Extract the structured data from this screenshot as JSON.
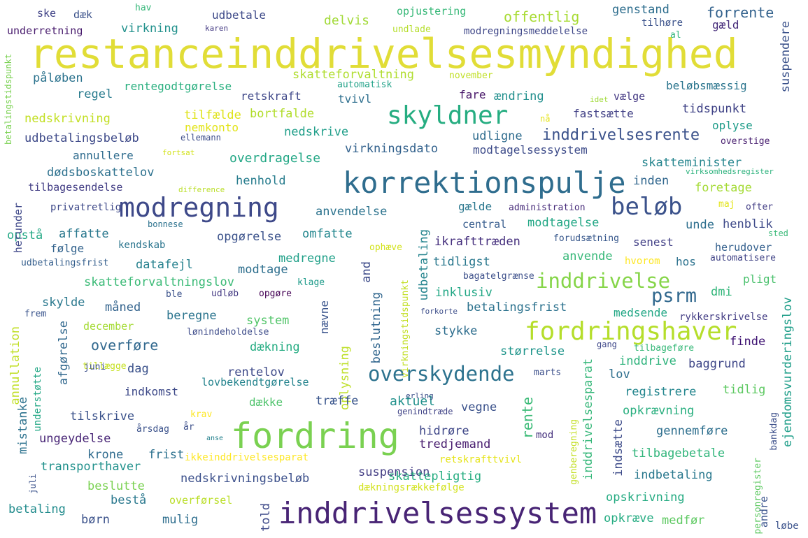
{
  "colors": {
    "background": "#ffffff",
    "palette": [
      "#440154",
      "#414487",
      "#2a788e",
      "#22a884",
      "#7ad151",
      "#fde725"
    ]
  },
  "words": [
    {
      "text": "restanceinddrivelsesmyndighed",
      "color": "#e1dd37"
    },
    {
      "text": "korrektionspulje",
      "color": "#2f6d8e"
    },
    {
      "text": "fordring",
      "color": "#7ad151"
    },
    {
      "text": "inddrivelsessystem",
      "color": "#482475"
    },
    {
      "text": "modregning",
      "color": "#3e4989"
    },
    {
      "text": "fordringshaver",
      "color": "#b5de2b"
    },
    {
      "text": "skyldner",
      "color": "#26ad81"
    },
    {
      "text": "beløb",
      "color": "#3b528b"
    },
    {
      "text": "overskydende",
      "color": "#2c728e"
    },
    {
      "text": "inddrivelse",
      "color": "#86d549"
    },
    {
      "text": "psrm",
      "color": "#31688e"
    },
    {
      "text": "inddrivelsesrente",
      "color": "#3b528b"
    },
    {
      "text": "ejendomsvurderingslov",
      "color": "#1f9e89"
    },
    {
      "text": "ske",
      "color": "#404387"
    },
    {
      "text": "dæk",
      "color": "#3b528b"
    },
    {
      "text": "hav",
      "color": "#35b779"
    },
    {
      "text": "underretning",
      "color": "#481b6d"
    },
    {
      "text": "udbetale",
      "color": "#3e4a89"
    },
    {
      "text": "karen",
      "color": "#443a83"
    },
    {
      "text": "delvis",
      "color": "#a2da37"
    },
    {
      "text": "opjustering",
      "color": "#37b878"
    },
    {
      "text": "undlade",
      "color": "#b5de2b"
    },
    {
      "text": "offentlig",
      "color": "#a8db34"
    },
    {
      "text": "genstand",
      "color": "#2e6e8e"
    },
    {
      "text": "forrente",
      "color": "#33628d"
    },
    {
      "text": "gæld",
      "color": "#472d7b"
    },
    {
      "text": "tilhøre",
      "color": "#3b528b"
    },
    {
      "text": "al",
      "color": "#31b57b"
    },
    {
      "text": "virkning",
      "color": "#21918c"
    },
    {
      "text": "modregningsmeddelelse",
      "color": "#3f4788"
    },
    {
      "text": "påløben",
      "color": "#2c738e"
    },
    {
      "text": "skatteforvaltning",
      "color": "#b0dd2f"
    },
    {
      "text": "november",
      "color": "#c0df25"
    },
    {
      "text": "automatisk",
      "color": "#1fa187"
    },
    {
      "text": "regel",
      "color": "#297b8e"
    },
    {
      "text": "rentegodtgørelse",
      "color": "#29af7f"
    },
    {
      "text": "retskraft",
      "color": "#3f4889"
    },
    {
      "text": "tvivl",
      "color": "#2e6f8e"
    },
    {
      "text": "fare",
      "color": "#481769"
    },
    {
      "text": "ændring",
      "color": "#218f8d"
    },
    {
      "text": "idet",
      "color": "#a0da39"
    },
    {
      "text": "vælge",
      "color": "#443983"
    },
    {
      "text": "beløbsmæssig",
      "color": "#2b758e"
    },
    {
      "text": "suspendere",
      "color": "#3b528b"
    },
    {
      "text": "nedskrivning",
      "color": "#c2df23"
    },
    {
      "text": "tilfælde",
      "color": "#dfe318"
    },
    {
      "text": "bortfalde",
      "color": "#b2dd2d"
    },
    {
      "text": "nemkonto",
      "color": "#e2e418"
    },
    {
      "text": "nedskrive",
      "color": "#1f9e89"
    },
    {
      "text": "nå",
      "color": "#e5e419"
    },
    {
      "text": "fastsætte",
      "color": "#424186"
    },
    {
      "text": "tidspunkt",
      "color": "#414487"
    },
    {
      "text": "oplyse",
      "color": "#1e9c89"
    },
    {
      "text": "overstige",
      "color": "#481f70"
    },
    {
      "text": "udbetalingsbeløb",
      "color": "#3e4a89"
    },
    {
      "text": "ellemann",
      "color": "#3d4d8a"
    },
    {
      "text": "fortsat",
      "color": "#d2e21b"
    },
    {
      "text": "udligne",
      "color": "#2f6c8e"
    },
    {
      "text": "virkningsdato",
      "color": "#33628d"
    },
    {
      "text": "modtagelsessystem",
      "color": "#3e4c8a"
    },
    {
      "text": "annullere",
      "color": "#2f6c8e"
    },
    {
      "text": "overdragelse",
      "color": "#22a785"
    },
    {
      "text": "skatteminister",
      "color": "#25858e"
    },
    {
      "text": "dødsboskattelov",
      "color": "#2d718e"
    },
    {
      "text": "henhold",
      "color": "#287d8e"
    },
    {
      "text": "inden",
      "color": "#31678e"
    },
    {
      "text": "virksomhedsregister",
      "color": "#2db27d"
    },
    {
      "text": "tilbagesendelse",
      "color": "#433e85"
    },
    {
      "text": "difference",
      "color": "#bade28"
    },
    {
      "text": "foretage",
      "color": "#a5db36"
    },
    {
      "text": "privatretlig",
      "color": "#3e4989"
    },
    {
      "text": "maj",
      "color": "#e3e418"
    },
    {
      "text": "ofter",
      "color": "#433e85"
    },
    {
      "text": "anvendelse",
      "color": "#2c738e"
    },
    {
      "text": "gælde",
      "color": "#2a778e"
    },
    {
      "text": "administration",
      "color": "#472c7a"
    },
    {
      "text": "bonnese",
      "color": "#2c728e"
    },
    {
      "text": "opstå",
      "color": "#22a884"
    },
    {
      "text": "affatte",
      "color": "#2a788e"
    },
    {
      "text": "central",
      "color": "#365c8d"
    },
    {
      "text": "modtagelse",
      "color": "#22a785"
    },
    {
      "text": "unde",
      "color": "#2e6f8e"
    },
    {
      "text": "henblik",
      "color": "#3e4a89"
    },
    {
      "text": "omfatte",
      "color": "#24878e"
    },
    {
      "text": "opgørelse",
      "color": "#3b528b"
    },
    {
      "text": "senest",
      "color": "#424086"
    },
    {
      "text": "sted",
      "color": "#38b977"
    },
    {
      "text": "følge",
      "color": "#33638d"
    },
    {
      "text": "kendskab",
      "color": "#2b758e"
    },
    {
      "text": "udbetaling",
      "color": "#25848e"
    },
    {
      "text": "ophæve",
      "color": "#d2e21b"
    },
    {
      "text": "ikrafttræden",
      "color": "#46307e"
    },
    {
      "text": "forudsætning",
      "color": "#38588c"
    },
    {
      "text": "herudover",
      "color": "#34608d"
    },
    {
      "text": "medregne",
      "color": "#1fa088"
    },
    {
      "text": "automatisere",
      "color": "#414487"
    },
    {
      "text": "udbetalingsfrist",
      "color": "#355f8d"
    },
    {
      "text": "datafejl",
      "color": "#26818e"
    },
    {
      "text": "modtage",
      "color": "#2e6f8e"
    },
    {
      "text": "anvende",
      "color": "#37b878"
    },
    {
      "text": "tidligst",
      "color": "#2a788e"
    },
    {
      "text": "hos",
      "color": "#2c728e"
    },
    {
      "text": "hvorom",
      "color": "#fde725"
    },
    {
      "text": "skatteforvaltningslov",
      "color": "#3aba76"
    },
    {
      "text": "and",
      "color": "#3e4c8a"
    },
    {
      "text": "bagatelgrænse",
      "color": "#3c4f8a"
    },
    {
      "text": "dmi",
      "color": "#32b67a"
    },
    {
      "text": "pligt",
      "color": "#4ac16d"
    },
    {
      "text": "klage",
      "color": "#1e9b8a"
    },
    {
      "text": "inklusiv",
      "color": "#22a785"
    },
    {
      "text": "skylde",
      "color": "#2a788e"
    },
    {
      "text": "måned",
      "color": "#33638d"
    },
    {
      "text": "ble",
      "color": "#3b528b"
    },
    {
      "text": "udløb",
      "color": "#443a83"
    },
    {
      "text": "opgøre",
      "color": "#440154"
    },
    {
      "text": "betalingsfrist",
      "color": "#2c728e"
    },
    {
      "text": "forkorte",
      "color": "#3d4e8a"
    },
    {
      "text": "frem",
      "color": "#3a548c"
    },
    {
      "text": "beregne",
      "color": "#2b748e"
    },
    {
      "text": "system",
      "color": "#52c569"
    },
    {
      "text": "nævne",
      "color": "#3a548c"
    },
    {
      "text": "medsende",
      "color": "#22a785"
    },
    {
      "text": "rykkerskrivelse",
      "color": "#433d84"
    },
    {
      "text": "december",
      "color": "#a5db36"
    },
    {
      "text": "lønindeholdelse",
      "color": "#3e4c8a"
    },
    {
      "text": "stykke",
      "color": "#2e6e8e"
    },
    {
      "text": "annullation",
      "color": "#c0df25"
    },
    {
      "text": "afgørelse",
      "color": "#31688e"
    },
    {
      "text": "overføre",
      "color": "#31688e"
    },
    {
      "text": "dækning",
      "color": "#25ac82"
    },
    {
      "text": "beslutning",
      "color": "#31668e"
    },
    {
      "text": "virkningstidspunkt",
      "color": "#c2df23"
    },
    {
      "text": "størrelse",
      "color": "#1f958b"
    },
    {
      "text": "finde",
      "color": "#3b0f70"
    },
    {
      "text": "gang",
      "color": "#3f4889"
    },
    {
      "text": "tilbageføre",
      "color": "#37b878"
    },
    {
      "text": "understøtte",
      "color": "#22a785"
    },
    {
      "text": "mistanke",
      "color": "#2c728e"
    },
    {
      "text": "tillægge",
      "color": "#c5e021"
    },
    {
      "text": "dag",
      "color": "#3b528b"
    },
    {
      "text": "rentelov",
      "color": "#3e4a89"
    },
    {
      "text": "oplysning",
      "color": "#bddf26"
    },
    {
      "text": "inddrive",
      "color": "#2eb37c"
    },
    {
      "text": "baggrund",
      "color": "#3f4788"
    },
    {
      "text": "juni",
      "color": "#3c4f8a"
    },
    {
      "text": "marts",
      "color": "#3c4f8a"
    },
    {
      "text": "inddrivelsesparat",
      "color": "#35b779"
    },
    {
      "text": "lov",
      "color": "#2e6f8e"
    },
    {
      "text": "registrere",
      "color": "#24868e"
    },
    {
      "text": "tidlig",
      "color": "#5ec962"
    },
    {
      "text": "indkomst",
      "color": "#3e4a89"
    },
    {
      "text": "lovbekendtgørelse",
      "color": "#25848e"
    },
    {
      "text": "dække",
      "color": "#4ec36b"
    },
    {
      "text": "træffe",
      "color": "#39558c"
    },
    {
      "text": "vegne",
      "color": "#3b528b"
    },
    {
      "text": "aktuel",
      "color": "#21918c"
    },
    {
      "text": "erling",
      "color": "#3c4f8a"
    },
    {
      "text": "genindtræde",
      "color": "#414487"
    },
    {
      "text": "rente",
      "color": "#3aba76"
    },
    {
      "text": "indsætte",
      "color": "#3e4c8a"
    },
    {
      "text": "opkrævning",
      "color": "#29af7f"
    },
    {
      "text": "bankdag",
      "color": "#3c4f8a"
    },
    {
      "text": "tilskrive",
      "color": "#3b528b"
    },
    {
      "text": "krav",
      "color": "#fde725"
    },
    {
      "text": "år",
      "color": "#3c4f8a"
    },
    {
      "text": "årsdag",
      "color": "#3b528b"
    },
    {
      "text": "anse",
      "color": "#26828e"
    },
    {
      "text": "mod",
      "color": "#46327e"
    },
    {
      "text": "genberegning",
      "color": "#c2df23"
    },
    {
      "text": "gennemføre",
      "color": "#2e6f8e"
    },
    {
      "text": "ungeydelse",
      "color": "#482576"
    },
    {
      "text": "hidrøre",
      "color": "#3f4788"
    },
    {
      "text": "tredjemand",
      "color": "#481d6f"
    },
    {
      "text": "krone",
      "color": "#2f6b8e"
    },
    {
      "text": "frist",
      "color": "#2c718e"
    },
    {
      "text": "ikkeinddrivelsesparat",
      "color": "#fde725"
    },
    {
      "text": "tilbagebetale",
      "color": "#31b57b"
    },
    {
      "text": "transporthaver",
      "color": "#21918c"
    },
    {
      "text": "retskrafttvivl",
      "color": "#e5e419"
    },
    {
      "text": "juli",
      "color": "#3b528b"
    },
    {
      "text": "suspension",
      "color": "#433d84"
    },
    {
      "text": "indbetaling",
      "color": "#2a788e"
    },
    {
      "text": "nedskrivningsbeløb",
      "color": "#3c508b"
    },
    {
      "text": "skattepligtig",
      "color": "#26ad81"
    },
    {
      "text": "dækningsrækkefølge",
      "color": "#d2e21b"
    },
    {
      "text": "personregister",
      "color": "#5ec962"
    },
    {
      "text": "beslutte",
      "color": "#7ad151"
    },
    {
      "text": "bestå",
      "color": "#2a788e"
    },
    {
      "text": "overførsel",
      "color": "#bade28"
    },
    {
      "text": "told",
      "color": "#3e4a89"
    },
    {
      "text": "opskrivning",
      "color": "#25ab82"
    },
    {
      "text": "andre",
      "color": "#3a548c"
    },
    {
      "text": "betaling",
      "color": "#228c8d"
    },
    {
      "text": "børn",
      "color": "#3b528b"
    },
    {
      "text": "mulig",
      "color": "#2e6e8e"
    },
    {
      "text": "opkræve",
      "color": "#25ac82"
    },
    {
      "text": "medfør",
      "color": "#5ec962"
    },
    {
      "text": "løbe",
      "color": "#3b528b"
    },
    {
      "text": "betalingstidspunkt",
      "color": "#7ad151"
    },
    {
      "text": "herunder",
      "color": "#3f4889"
    }
  ]
}
